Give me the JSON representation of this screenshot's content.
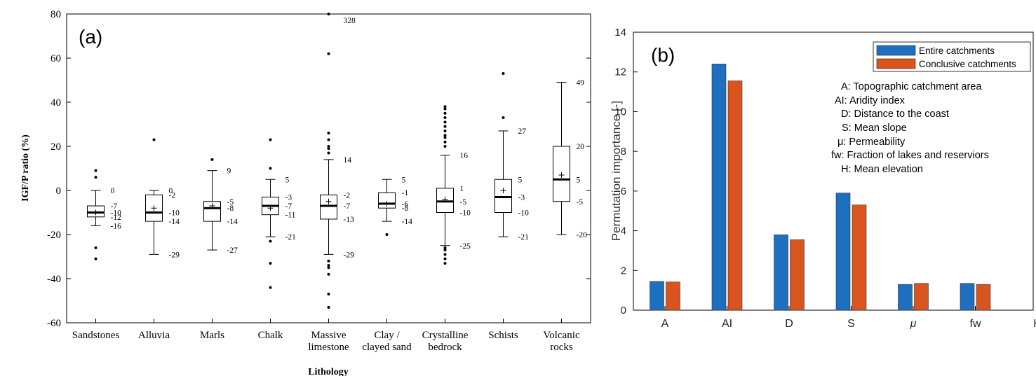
{
  "chart_data": [
    {
      "type": "box",
      "panel_label": "(a)",
      "xlabel": "Lithology",
      "ylabel": "IGF/P ratio (%)",
      "ylim": [
        -60,
        80
      ],
      "yticks": [
        -60,
        -40,
        -20,
        0,
        20,
        40,
        60,
        80
      ],
      "grid": false,
      "categories": [
        {
          "lines": [
            "Sandstones"
          ],
          "q1": -12,
          "median": -10,
          "q3": -7,
          "mean": -10,
          "wlo": -16,
          "whi": 0,
          "outliers": [
            9,
            6,
            -26,
            -31
          ],
          "labels": [
            {
              "v": 0,
              "t": "0"
            },
            {
              "v": -7,
              "t": "-7"
            },
            {
              "v": -10,
              "t": "-10"
            },
            {
              "v": -12,
              "t": "-12"
            },
            {
              "v": -16,
              "t": "-16"
            }
          ]
        },
        {
          "lines": [
            "Alluvia"
          ],
          "q1": -14,
          "median": -10,
          "q3": -2,
          "mean": -8,
          "wlo": -29,
          "whi": 0,
          "outliers": [
            23
          ],
          "labels": [
            {
              "v": 0,
              "t": "0"
            },
            {
              "v": -2,
              "t": "-2"
            },
            {
              "v": -10,
              "t": "-10"
            },
            {
              "v": -14,
              "t": "-14"
            },
            {
              "v": -29,
              "t": "-29"
            }
          ]
        },
        {
          "lines": [
            "Marls"
          ],
          "q1": -14,
          "median": -8,
          "q3": -5,
          "mean": -7,
          "wlo": -27,
          "whi": 9,
          "outliers": [
            14
          ],
          "labels": [
            {
              "v": 9,
              "t": "9"
            },
            {
              "v": -5,
              "t": "-5"
            },
            {
              "v": -8,
              "t": "-8"
            },
            {
              "v": -14,
              "t": "-14"
            },
            {
              "v": -27,
              "t": "-27"
            }
          ]
        },
        {
          "lines": [
            "Chalk"
          ],
          "q1": -11,
          "median": -7,
          "q3": -3,
          "mean": -8,
          "wlo": -21,
          "whi": 5,
          "outliers": [
            23,
            10,
            -23,
            -33,
            -44
          ],
          "labels": [
            {
              "v": 5,
              "t": "5"
            },
            {
              "v": -3,
              "t": "-3"
            },
            {
              "v": -7,
              "t": "-7"
            },
            {
              "v": -11,
              "t": "-11"
            },
            {
              "v": -21,
              "t": "-21"
            }
          ]
        },
        {
          "lines": [
            "Massive",
            "limestone"
          ],
          "q1": -13,
          "median": -7,
          "q3": -2,
          "mean": -5,
          "wlo": -29,
          "whi": 14,
          "outliers": [
            80,
            62,
            26,
            23,
            20,
            19,
            17,
            -32,
            -34,
            -35,
            -38,
            -47,
            -53
          ],
          "labels": [
            {
              "v": 14,
              "t": "14"
            },
            {
              "v": -2,
              "t": "-2"
            },
            {
              "v": -7,
              "t": "-7"
            },
            {
              "v": -13,
              "t": "-13"
            },
            {
              "v": -29,
              "t": "-29"
            },
            {
              "v": 80,
              "t": "328"
            }
          ]
        },
        {
          "lines": [
            "Clay /",
            "clayed sand"
          ],
          "q1": -8,
          "median": -6,
          "q3": -1,
          "mean": -6,
          "wlo": -14,
          "whi": 5,
          "outliers": [
            -20
          ],
          "labels": [
            {
              "v": 5,
              "t": "5"
            },
            {
              "v": -1,
              "t": "-1"
            },
            {
              "v": -6,
              "t": "-6"
            },
            {
              "v": -8,
              "t": "-8"
            },
            {
              "v": -14,
              "t": "-14"
            }
          ]
        },
        {
          "lines": [
            "Crystalline",
            "bedrock"
          ],
          "q1": -10,
          "median": -5,
          "q3": 1,
          "mean": -4,
          "wlo": -25,
          "whi": 16,
          "outliers": [
            38,
            37,
            35,
            33,
            31,
            29,
            27,
            25,
            24,
            22,
            20,
            -26,
            -27,
            -29,
            -31,
            -33
          ],
          "labels": [
            {
              "v": 16,
              "t": "16"
            },
            {
              "v": 1,
              "t": "1"
            },
            {
              "v": -5,
              "t": "-5"
            },
            {
              "v": -10,
              "t": "-10"
            },
            {
              "v": -25,
              "t": "-25"
            }
          ]
        },
        {
          "lines": [
            "Schists"
          ],
          "q1": -10,
          "median": -3,
          "q3": 5,
          "mean": 0,
          "wlo": -21,
          "whi": 27,
          "outliers": [
            53,
            33
          ],
          "labels": [
            {
              "v": 27,
              "t": "27"
            },
            {
              "v": 5,
              "t": "5"
            },
            {
              "v": -3,
              "t": "-3"
            },
            {
              "v": -10,
              "t": "-10"
            },
            {
              "v": -21,
              "t": "-21"
            }
          ]
        },
        {
          "lines": [
            "Volcanic",
            "rocks"
          ],
          "q1": -5,
          "median": 5,
          "q3": 20,
          "mean": 7,
          "wlo": -20,
          "whi": 49,
          "outliers": [],
          "labels": [
            {
              "v": 49,
              "t": "49"
            },
            {
              "v": 20,
              "t": "20"
            },
            {
              "v": 5,
              "t": "5"
            },
            {
              "v": -5,
              "t": "-5"
            },
            {
              "v": -20,
              "t": "-20"
            }
          ]
        }
      ]
    },
    {
      "type": "bar",
      "panel_label": "(b)",
      "ylabel": "Permutation importance [-]",
      "ylim": [
        0,
        14
      ],
      "yticks": [
        0,
        2,
        4,
        6,
        8,
        10,
        12,
        14
      ],
      "grid": false,
      "legend_position": "top-right",
      "categories": [
        "A",
        "AI",
        "D",
        "S",
        "μ",
        "fw",
        "H"
      ],
      "series": [
        {
          "name": "Entire catchments",
          "color": "#1e6fc0",
          "values": [
            1.45,
            12.4,
            3.8,
            5.9,
            1.3,
            1.35,
            0
          ]
        },
        {
          "name": "Conclusive catchments",
          "color": "#d9541e",
          "values": [
            1.42,
            11.55,
            3.55,
            5.3,
            1.35,
            1.3,
            0
          ]
        }
      ],
      "annotations": [
        "A: Topographic catchment area",
        "AI: Aridity index",
        "D: Distance to the coast",
        "S: Mean slope",
        "μ: Permeability",
        "fw: Fraction of lakes and reserviors",
        "H: Mean elevation"
      ]
    }
  ]
}
